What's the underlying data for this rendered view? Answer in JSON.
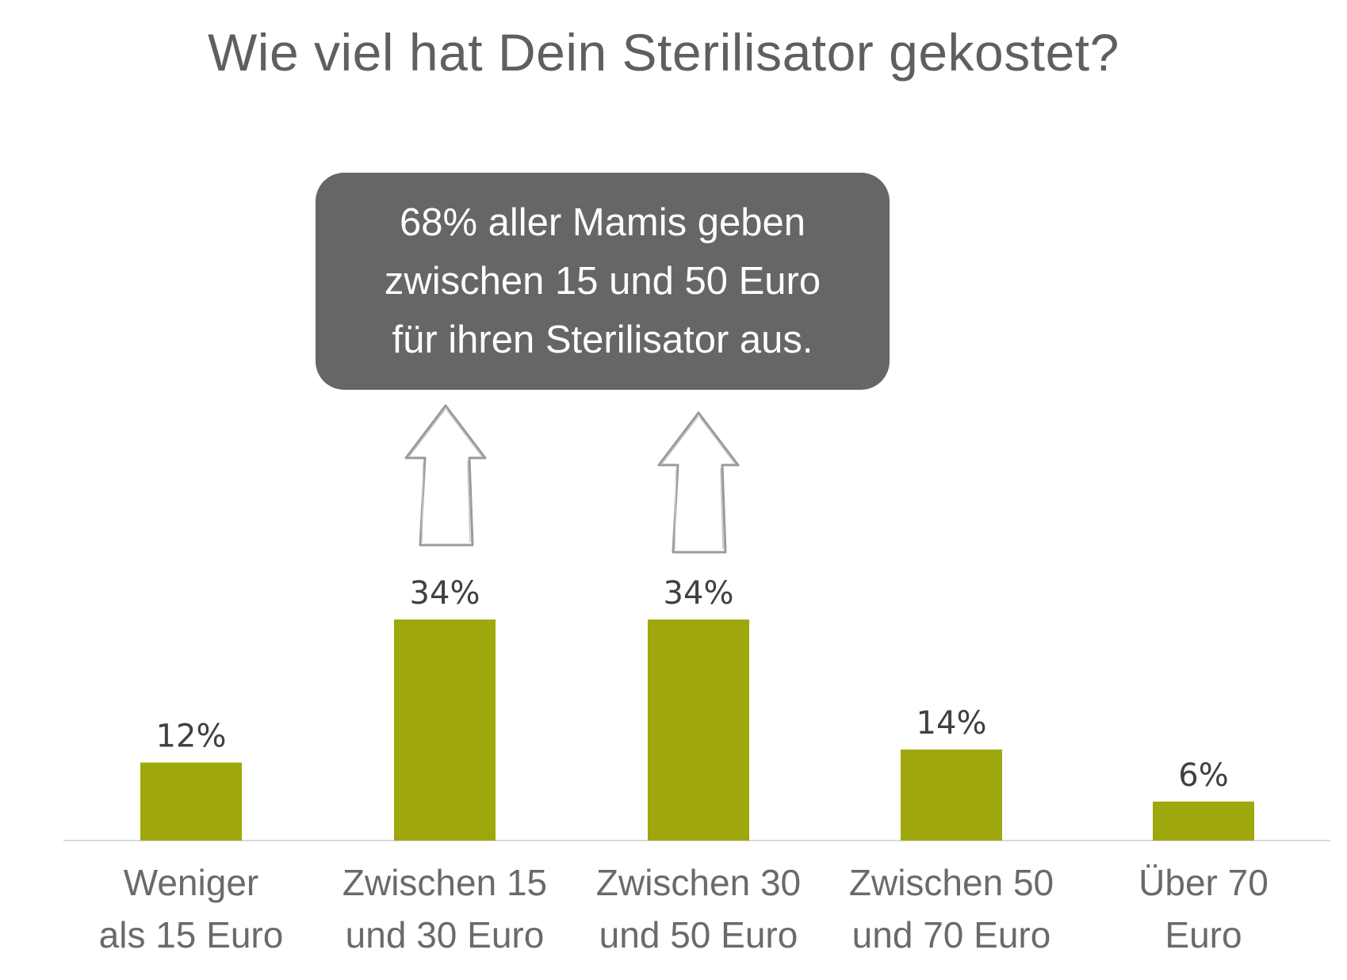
{
  "chart_data": {
    "type": "bar",
    "title": "Wie viel hat Dein Sterilisator gekostet?",
    "categories": [
      [
        "Weniger",
        "als 15 Euro"
      ],
      [
        "Zwischen 15",
        "und 30 Euro"
      ],
      [
        "Zwischen 30",
        "und 50 Euro"
      ],
      [
        "Zwischen 50",
        "und 70 Euro"
      ],
      [
        "Über 70",
        "Euro"
      ]
    ],
    "values": [
      12,
      34,
      34,
      14,
      6
    ],
    "data_labels": [
      "12%",
      "34%",
      "34%",
      "14%",
      "6%"
    ],
    "unit": "%",
    "ylim": [
      0,
      34
    ],
    "grid": false,
    "legend": "none",
    "annotation": {
      "lines": [
        "68% aller Mamis geben",
        "zwischen 15 und 50 Euro",
        "für ihren Sterilisator aus."
      ],
      "arrows_point_to": [
        "Zwischen 15 und 30 Euro",
        "Zwischen 30 und 50 Euro"
      ]
    },
    "colors": {
      "bar": "#9ea70b",
      "axis": "#d9d9d9",
      "callout": "#666666",
      "data_label": "#404040",
      "category_label": "#6a6a6a",
      "title": "#5f5f5f"
    }
  }
}
